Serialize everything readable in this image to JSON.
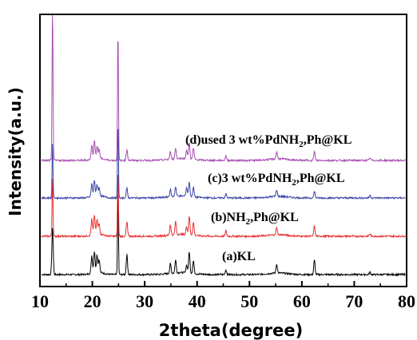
{
  "chart_data": {
    "type": "line",
    "title": "",
    "xlabel": "2theta(degree)",
    "ylabel": "Intensity(a.u.)",
    "xlim": [
      10,
      80
    ],
    "xticks": [
      "10",
      "20",
      "30",
      "40",
      "50",
      "60",
      "70",
      "80"
    ],
    "yticks_shown": false,
    "series": [
      {
        "name": "(a)KL",
        "label_parts": [
          "(a)KL"
        ],
        "color": "#000000",
        "baseline": 0,
        "peaks": [
          {
            "x": 12.4,
            "y": 58
          },
          {
            "x": 19.9,
            "y": 22
          },
          {
            "x": 20.4,
            "y": 27
          },
          {
            "x": 20.9,
            "y": 22
          },
          {
            "x": 21.3,
            "y": 16
          },
          {
            "x": 24.9,
            "y": 110
          },
          {
            "x": 26.6,
            "y": 25
          },
          {
            "x": 34.9,
            "y": 12
          },
          {
            "x": 35.9,
            "y": 16
          },
          {
            "x": 38.0,
            "y": 10
          },
          {
            "x": 38.5,
            "y": 27
          },
          {
            "x": 39.3,
            "y": 16
          },
          {
            "x": 45.5,
            "y": 6
          },
          {
            "x": 55.2,
            "y": 11
          },
          {
            "x": 62.4,
            "y": 18
          },
          {
            "x": 73.0,
            "y": 3
          }
        ]
      },
      {
        "name": "(b)NH2,Ph@KL",
        "label_parts": [
          "(b)NH",
          "2",
          ",Ph@KL"
        ],
        "color": "#e83030",
        "baseline": 1,
        "peaks": [
          {
            "x": 12.4,
            "y": 75
          },
          {
            "x": 19.9,
            "y": 20
          },
          {
            "x": 20.4,
            "y": 24
          },
          {
            "x": 20.9,
            "y": 18
          },
          {
            "x": 21.3,
            "y": 13
          },
          {
            "x": 24.9,
            "y": 85
          },
          {
            "x": 26.6,
            "y": 18
          },
          {
            "x": 34.9,
            "y": 13
          },
          {
            "x": 35.9,
            "y": 16
          },
          {
            "x": 38.0,
            "y": 10
          },
          {
            "x": 38.5,
            "y": 24
          },
          {
            "x": 39.3,
            "y": 16
          },
          {
            "x": 45.5,
            "y": 7
          },
          {
            "x": 55.2,
            "y": 9
          },
          {
            "x": 62.4,
            "y": 13
          },
          {
            "x": 73.0,
            "y": 3
          }
        ]
      },
      {
        "name": "(c)3 wt%PdNH2,Ph@KL",
        "label_parts": [
          "(c)3 wt%PdNH",
          "2",
          ",Ph@KL"
        ],
        "color": "#3a46a6",
        "baseline": 2,
        "peaks": [
          {
            "x": 12.4,
            "y": 70
          },
          {
            "x": 19.9,
            "y": 16
          },
          {
            "x": 20.4,
            "y": 20
          },
          {
            "x": 20.9,
            "y": 14
          },
          {
            "x": 21.3,
            "y": 10
          },
          {
            "x": 24.9,
            "y": 95
          },
          {
            "x": 26.6,
            "y": 12
          },
          {
            "x": 34.9,
            "y": 9
          },
          {
            "x": 35.9,
            "y": 12
          },
          {
            "x": 38.0,
            "y": 11
          },
          {
            "x": 38.5,
            "y": 18
          },
          {
            "x": 39.3,
            "y": 12
          },
          {
            "x": 45.5,
            "y": 5
          },
          {
            "x": 55.2,
            "y": 8
          },
          {
            "x": 62.4,
            "y": 8
          },
          {
            "x": 73.0,
            "y": 3
          }
        ]
      },
      {
        "name": "(d)used 3 wt%PdNH2,Ph@KL",
        "label_parts": [
          "(d)used 3 wt%PdNH",
          "2",
          ",Ph@KL"
        ],
        "color": "#a84eb4",
        "baseline": 3,
        "peaks": [
          {
            "x": 12.4,
            "y": 210
          },
          {
            "x": 19.9,
            "y": 18
          },
          {
            "x": 20.4,
            "y": 22
          },
          {
            "x": 20.9,
            "y": 15
          },
          {
            "x": 21.3,
            "y": 11
          },
          {
            "x": 24.9,
            "y": 165
          },
          {
            "x": 26.6,
            "y": 14
          },
          {
            "x": 34.9,
            "y": 9
          },
          {
            "x": 35.9,
            "y": 13
          },
          {
            "x": 38.0,
            "y": 11
          },
          {
            "x": 38.5,
            "y": 20
          },
          {
            "x": 39.3,
            "y": 14
          },
          {
            "x": 45.5,
            "y": 6
          },
          {
            "x": 55.2,
            "y": 9
          },
          {
            "x": 62.4,
            "y": 11
          },
          {
            "x": 73.0,
            "y": 3
          }
        ]
      }
    ]
  }
}
